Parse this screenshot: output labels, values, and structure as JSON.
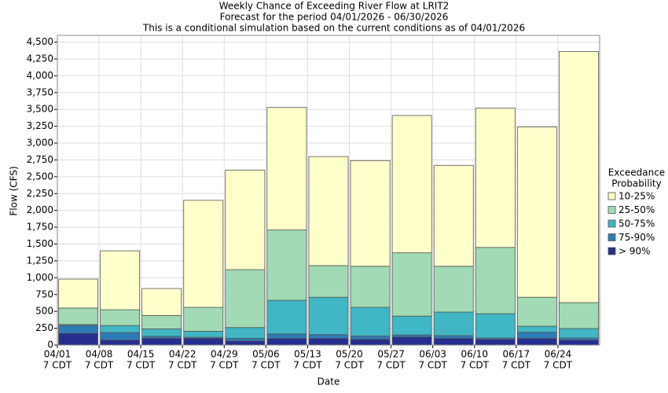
{
  "chart_data": {
    "type": "stacked_bar",
    "title": "Weekly Chance of Exceeding River Flow at LRIT2",
    "subtitle": "Forecast for the period 04/01/2026 - 06/30/2026",
    "subtitle2": "This is a conditional simulation based on the current conditions as of 04/01/2026",
    "x_label": "Date",
    "y_label": "Flow (CFS)",
    "legend_title": [
      "Exceedance",
      "Probability"
    ],
    "categories": [
      [
        "04/01",
        "7 CDT"
      ],
      [
        "04/08",
        "7 CDT"
      ],
      [
        "04/15",
        "7 CDT"
      ],
      [
        "04/22",
        "7 CDT"
      ],
      [
        "04/29",
        "7 CDT"
      ],
      [
        "05/06",
        "7 CDT"
      ],
      [
        "05/13",
        "7 CDT"
      ],
      [
        "05/20",
        "7 CDT"
      ],
      [
        "05/27",
        "7 CDT"
      ],
      [
        "06/03",
        "7 CDT"
      ],
      [
        "06/10",
        "7 CDT"
      ],
      [
        "06/17",
        "7 CDT"
      ],
      [
        "06/24",
        "7 CDT"
      ]
    ],
    "series": [
      {
        "name": "> 90%",
        "color": "#262f8f",
        "values": [
          175,
          75,
          100,
          100,
          60,
          100,
          100,
          85,
          120,
          100,
          85,
          100,
          75
        ]
      },
      {
        "name": "75-90%",
        "color": "#2c7bb6",
        "values": [
          115,
          110,
          30,
          15,
          40,
          65,
          55,
          50,
          30,
          40,
          20,
          90,
          30
        ]
      },
      {
        "name": "50-75%",
        "color": "#41b6c4",
        "values": [
          15,
          105,
          110,
          90,
          160,
          500,
          555,
          425,
          280,
          350,
          360,
          90,
          140
        ]
      },
      {
        "name": "25-50%",
        "color": "#a1dab4",
        "values": [
          245,
          235,
          200,
          355,
          860,
          1045,
          470,
          610,
          940,
          680,
          985,
          430,
          385
        ]
      },
      {
        "name": "10-25%",
        "color": "#ffffcc",
        "values": [
          430,
          875,
          400,
          1590,
          1480,
          1820,
          1620,
          1570,
          2040,
          1500,
          2070,
          2530,
          3730
        ]
      }
    ],
    "ylim": [
      0,
      4600
    ],
    "yticks": [
      0,
      250,
      500,
      750,
      {
        "value": 1000,
        "label": "1,000"
      },
      {
        "value": 1250,
        "label": "1,250"
      },
      {
        "value": 1500,
        "label": "1,500"
      },
      {
        "value": 1750,
        "label": "1,750"
      },
      {
        "value": 2000,
        "label": "2,000"
      },
      {
        "value": 2250,
        "label": "2,250"
      },
      {
        "value": 2500,
        "label": "2,500"
      },
      {
        "value": 2750,
        "label": "2,750"
      },
      {
        "value": 3000,
        "label": "3,000"
      },
      {
        "value": 3250,
        "label": "3,250"
      },
      {
        "value": 3500,
        "label": "3,500"
      },
      {
        "value": 3750,
        "label": "3,750"
      },
      {
        "value": 4000,
        "label": "4,000"
      },
      {
        "value": 4250,
        "label": "4,250"
      },
      {
        "value": 4500,
        "label": "4,500"
      }
    ],
    "grid": true
  }
}
